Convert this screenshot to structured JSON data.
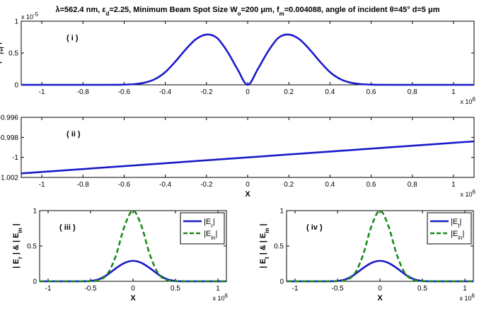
{
  "figure": {
    "title": "λ=562.4 nm, εd=2.25,  Minimum Beam Spot Size Wo=200 μm, fm=0.004088, angle of incident θ=45° d=5 μm"
  },
  "chart_data": [
    {
      "id": "i",
      "type": "line",
      "annotation": "( i )",
      "ylabel": "| E r+t |",
      "xlabel": "",
      "xlim": [
        -1.1,
        1.1
      ],
      "ylim": [
        0,
        1
      ],
      "xticks": [
        -1,
        -0.8,
        -0.6,
        -0.4,
        -0.2,
        0,
        0.2,
        0.4,
        0.6,
        0.8,
        1
      ],
      "xtick_labels": [
        "-1",
        "-0.8",
        "-0.6",
        "-0.4",
        "-0.2",
        "0",
        "0.2",
        "0.4",
        "0.6",
        "0.8",
        "1"
      ],
      "yticks": [
        0,
        0.5,
        1
      ],
      "ytick_labels": [
        "0",
        "0.5",
        "1"
      ],
      "x_multiplier": "x 10^6",
      "y_multiplier": "x 10^-5",
      "series": [
        {
          "color": "#1a1ac8",
          "dash": "solid",
          "x": [
            -1.1,
            -0.7,
            -0.6,
            -0.55,
            -0.5,
            -0.45,
            -0.4,
            -0.35,
            -0.3,
            -0.25,
            -0.2,
            -0.15,
            -0.1,
            -0.05,
            0,
            0.05,
            0.1,
            0.15,
            0.2,
            0.25,
            0.3,
            0.35,
            0.4,
            0.45,
            0.5,
            0.55,
            0.6,
            0.7,
            1.1
          ],
          "y": [
            0,
            0,
            0.003,
            0.011,
            0.034,
            0.09,
            0.2,
            0.37,
            0.56,
            0.72,
            0.79,
            0.74,
            0.53,
            0.25,
            0,
            0.25,
            0.53,
            0.74,
            0.79,
            0.72,
            0.56,
            0.37,
            0.2,
            0.09,
            0.034,
            0.011,
            0.003,
            0,
            0
          ]
        }
      ]
    },
    {
      "id": "ii",
      "type": "line",
      "annotation": "( ii )",
      "ylabel": "ΔΦ r-t / π",
      "xlabel": "X",
      "xlim": [
        -1.1,
        1.1
      ],
      "ylim": [
        -1.002,
        -0.996
      ],
      "xticks": [
        -1,
        -0.8,
        -0.6,
        -0.4,
        -0.2,
        0,
        0.2,
        0.4,
        0.6,
        0.8,
        1
      ],
      "xtick_labels": [
        "-1",
        "-0.8",
        "-0.6",
        "-0.4",
        "-0.2",
        "0",
        "0.2",
        "0.4",
        "0.6",
        "0.8",
        "1"
      ],
      "yticks": [
        -1.002,
        -1,
        -0.998,
        -0.996
      ],
      "ytick_labels": [
        "-1.002",
        "-1",
        "-0.998",
        "-0.996"
      ],
      "x_multiplier": "x 10^6",
      "series": [
        {
          "color": "#1a1ac8",
          "dash": "solid",
          "x": [
            -1.1,
            1.1
          ],
          "y": [
            -1.0016,
            -0.9984
          ]
        }
      ]
    },
    {
      "id": "iii",
      "type": "line",
      "annotation": "( iii )",
      "ylabel": "| E r | & | E in |",
      "xlabel": "X",
      "xlim": [
        -1.1,
        1.1
      ],
      "ylim": [
        0,
        1
      ],
      "xticks": [
        -1,
        -0.5,
        0,
        0.5,
        1
      ],
      "xtick_labels": [
        "-1",
        "-0.5",
        "0",
        "0.5",
        "1"
      ],
      "yticks": [
        0,
        0.5,
        1
      ],
      "ytick_labels": [
        "0",
        "0.5",
        "1"
      ],
      "x_multiplier": "x 10^6",
      "legend_position": "top-right",
      "series": [
        {
          "name": "|Er|",
          "color": "#1a1ac8",
          "dash": "solid",
          "x": [
            -1.1,
            -0.7,
            -0.6,
            -0.5,
            -0.4,
            -0.3,
            -0.2,
            -0.1,
            0,
            0.1,
            0.2,
            0.3,
            0.4,
            0.5,
            0.6,
            0.7,
            1.1
          ],
          "y": [
            0,
            0,
            0.0003,
            0.005,
            0.03,
            0.095,
            0.185,
            0.26,
            0.29,
            0.26,
            0.185,
            0.095,
            0.03,
            0.005,
            0.0003,
            0,
            0
          ]
        },
        {
          "name": "|Ein|",
          "color": "#1a8a1a",
          "dash": "dashed",
          "x": [
            -1.1,
            -0.7,
            -0.6,
            -0.5,
            -0.4,
            -0.3,
            -0.2,
            -0.1,
            0,
            0.1,
            0.2,
            0.3,
            0.4,
            0.5,
            0.6,
            0.7,
            1.1
          ],
          "y": [
            0,
            0,
            0.0001,
            0.002,
            0.018,
            0.105,
            0.37,
            0.78,
            1.0,
            0.78,
            0.37,
            0.105,
            0.018,
            0.002,
            0.0001,
            0,
            0
          ]
        }
      ]
    },
    {
      "id": "iv",
      "type": "line",
      "annotation": "( iv )",
      "ylabel": "| E t | & | E in |",
      "xlabel": "X",
      "xlim": [
        -1.1,
        1.1
      ],
      "ylim": [
        0,
        1
      ],
      "xticks": [
        -1,
        -0.5,
        0,
        0.5,
        1
      ],
      "xtick_labels": [
        "-1",
        "-0.5",
        "0",
        "0.5",
        "1"
      ],
      "yticks": [
        0,
        0.5,
        1
      ],
      "ytick_labels": [
        "0",
        "0.5",
        "1"
      ],
      "x_multiplier": "x 10^6",
      "legend_position": "top-right",
      "series": [
        {
          "name": "|Et|",
          "color": "#1a1ac8",
          "dash": "solid",
          "x": [
            -1.1,
            -0.7,
            -0.6,
            -0.5,
            -0.4,
            -0.3,
            -0.2,
            -0.1,
            0,
            0.1,
            0.2,
            0.3,
            0.4,
            0.5,
            0.6,
            0.7,
            1.1
          ],
          "y": [
            0,
            0,
            0.0003,
            0.005,
            0.03,
            0.095,
            0.185,
            0.26,
            0.29,
            0.26,
            0.185,
            0.095,
            0.03,
            0.005,
            0.0003,
            0,
            0
          ]
        },
        {
          "name": "|Ein|",
          "color": "#1a8a1a",
          "dash": "dashed",
          "x": [
            -1.1,
            -0.7,
            -0.6,
            -0.5,
            -0.4,
            -0.3,
            -0.2,
            -0.1,
            0,
            0.1,
            0.2,
            0.3,
            0.4,
            0.5,
            0.6,
            0.7,
            1.1
          ],
          "y": [
            0,
            0,
            0.0001,
            0.002,
            0.018,
            0.105,
            0.37,
            0.78,
            1.0,
            0.78,
            0.37,
            0.105,
            0.018,
            0.002,
            0.0001,
            0,
            0
          ]
        }
      ]
    }
  ]
}
